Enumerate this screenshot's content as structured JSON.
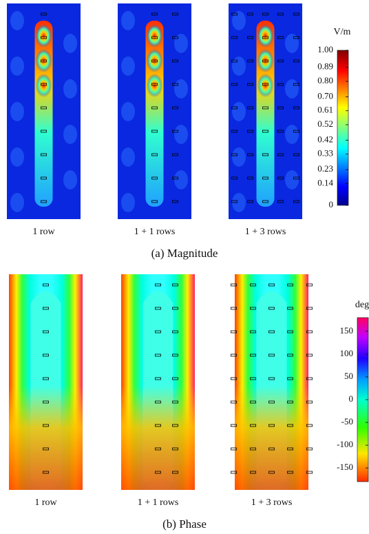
{
  "magnitude": {
    "caption": "(a) Magnitude",
    "panels": [
      "1 row",
      "1 + 1 rows",
      "1 + 3 rows"
    ],
    "colorbar": {
      "unit": "V/m",
      "range": [
        0,
        1
      ],
      "ticks": [
        0,
        {
          "value": 0.14,
          "label": "0.14"
        },
        {
          "value": 0.23,
          "label": "0.23"
        },
        {
          "value": 0.33,
          "label": "0.33"
        },
        {
          "value": 0.42,
          "label": "0.42"
        },
        {
          "value": 0.52,
          "label": "0.52"
        },
        {
          "value": 0.61,
          "label": "0.61"
        },
        {
          "value": 0.7,
          "label": "0.70"
        },
        {
          "value": 0.8,
          "label": "0.80"
        },
        {
          "value": 0.89,
          "label": "0.89"
        },
        {
          "value": 1,
          "label": "1.00"
        }
      ]
    }
  },
  "phase": {
    "caption": "(b) Phase",
    "panels": [
      "1 row",
      "1 + 1 rows",
      "1 + 3 rows"
    ],
    "colorbar": {
      "unit": "deg",
      "range": [
        -180,
        180
      ],
      "ticks": [
        150,
        100,
        50,
        0,
        -50,
        -100,
        -150
      ]
    }
  }
}
